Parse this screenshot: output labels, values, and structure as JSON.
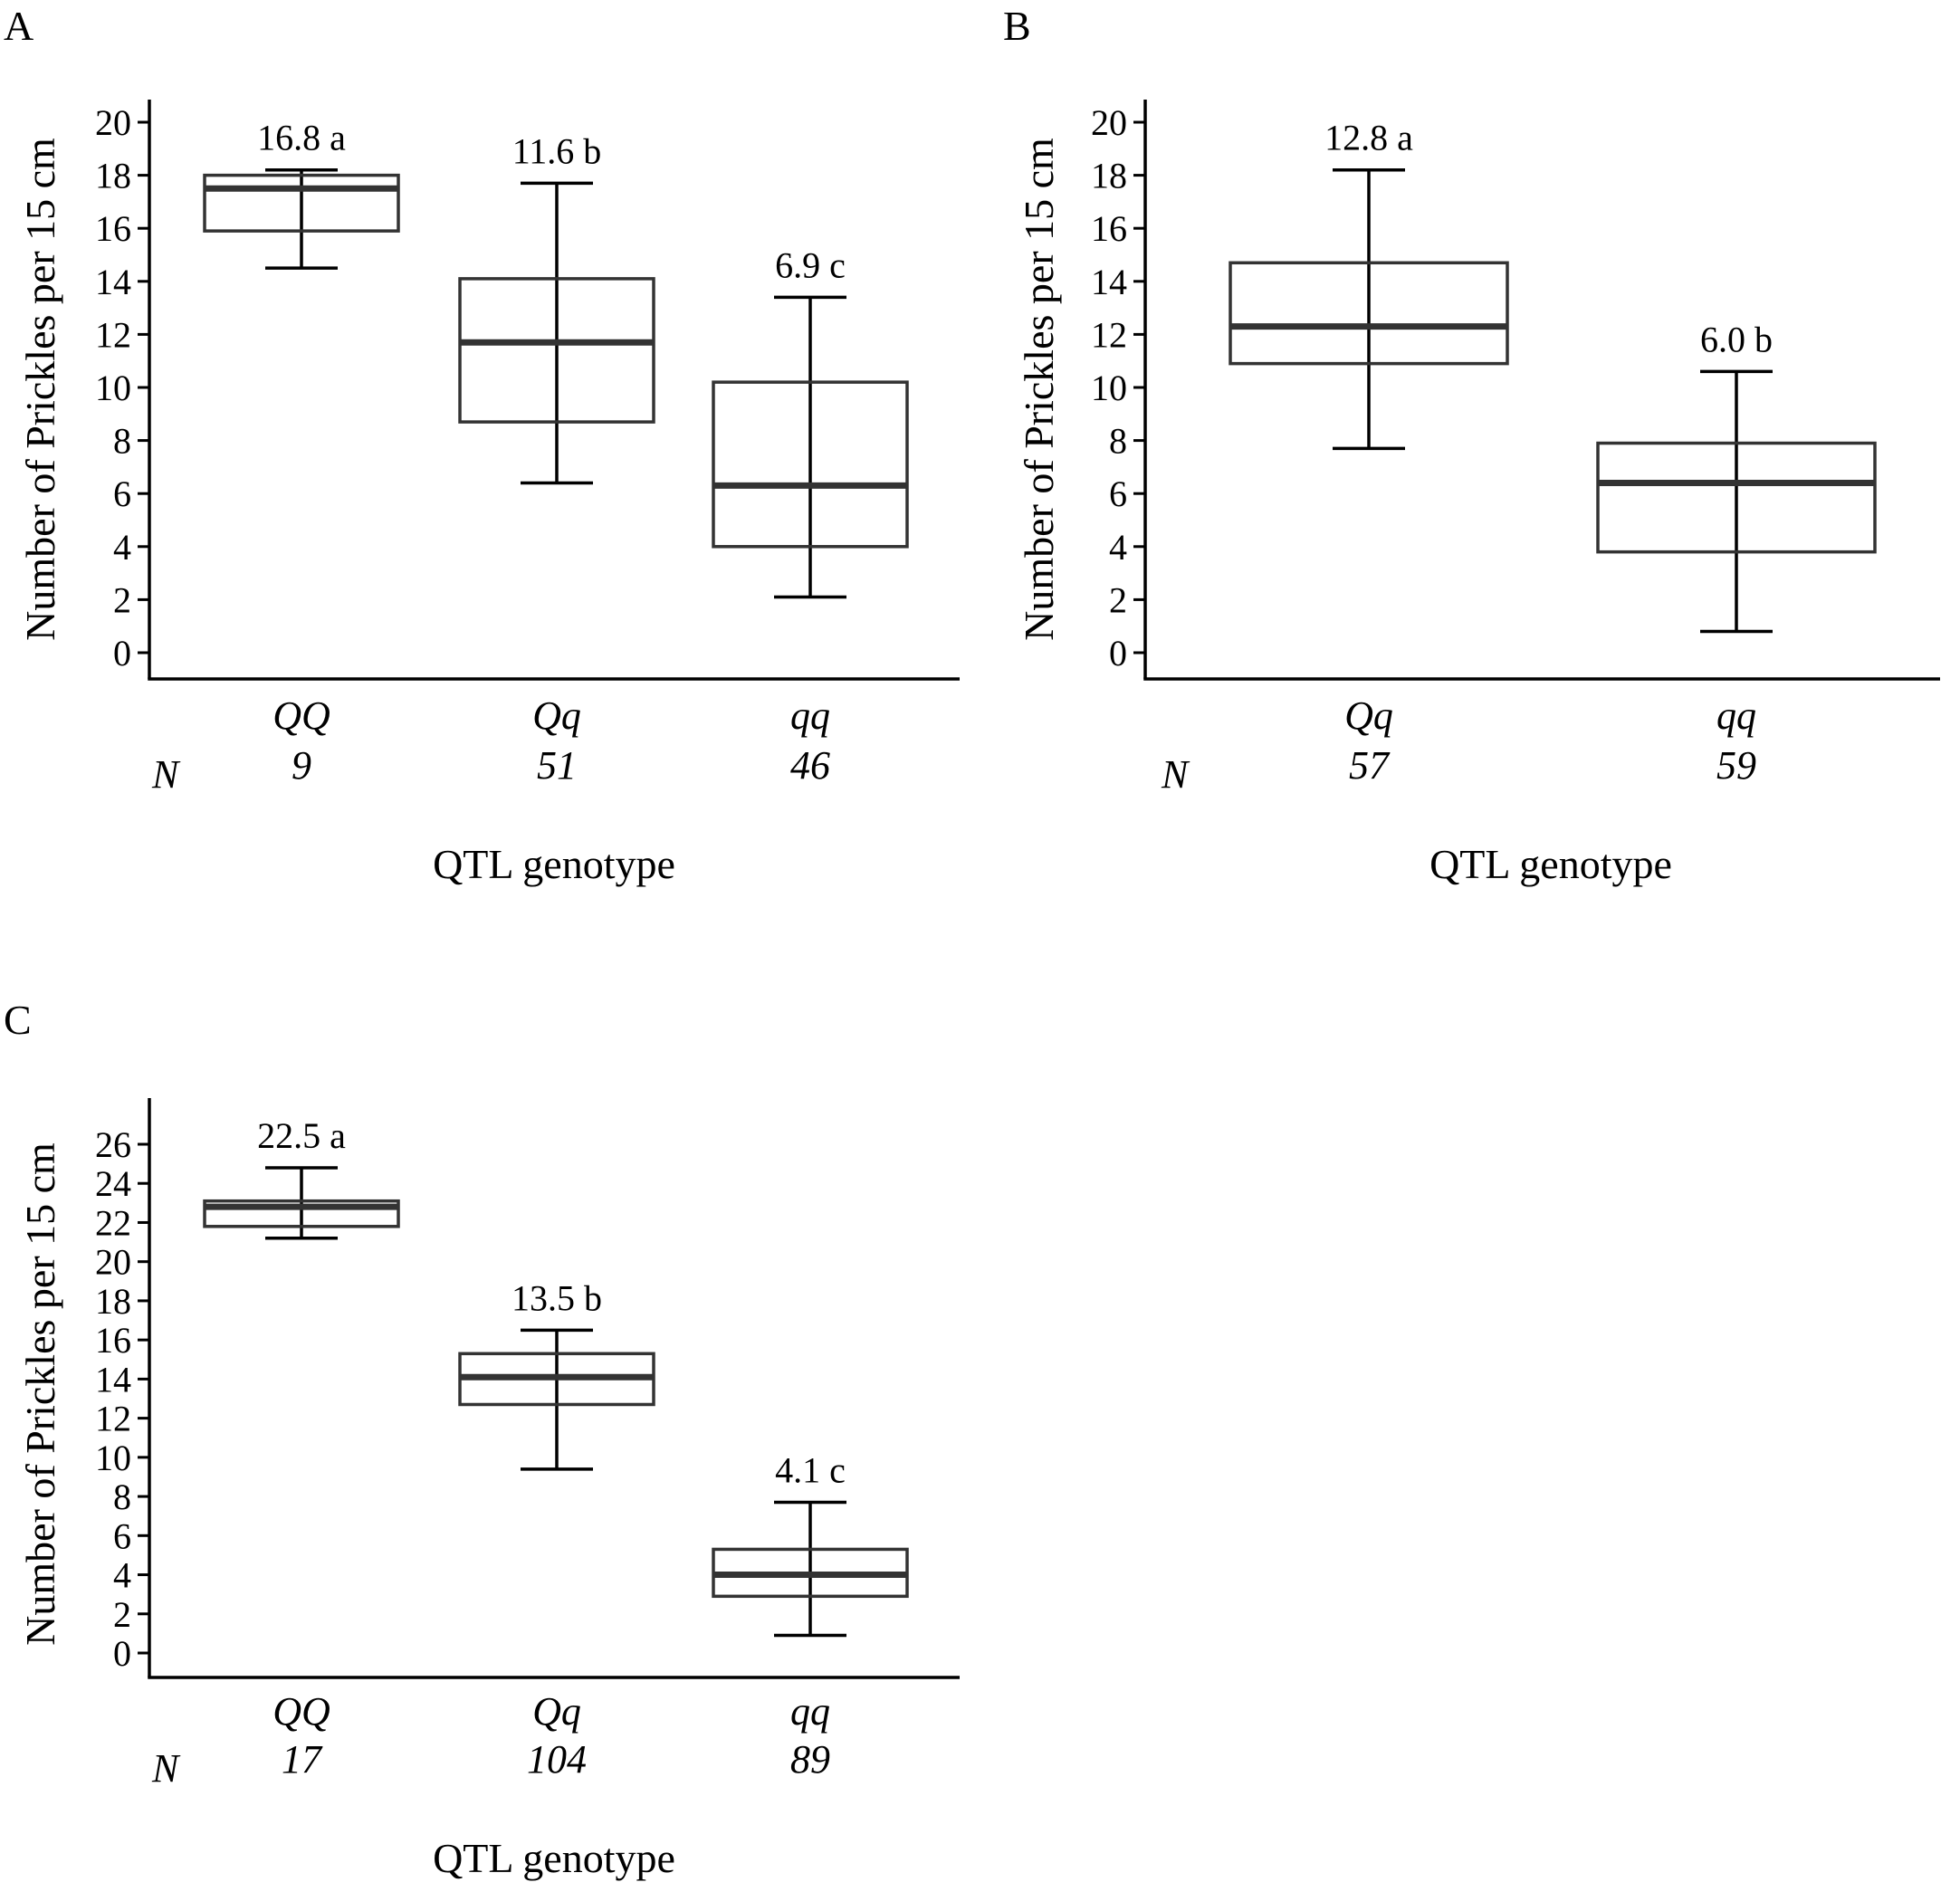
{
  "chart_data": [
    {
      "panel": "A",
      "type": "boxplot",
      "ylabel": "Number of Prickles per 15 cm",
      "xlabel": "QTL genotype",
      "n_label": "N",
      "ylim": [
        -1,
        21
      ],
      "yticks": [
        0,
        2,
        4,
        6,
        8,
        10,
        12,
        14,
        16,
        18,
        20
      ],
      "categories": [
        "QQ",
        "Qq",
        "qq"
      ],
      "n": [
        "9",
        "51",
        "46"
      ],
      "labels": [
        "16.8 a",
        "11.6 b",
        "6.9 c"
      ],
      "boxes": [
        {
          "min": 14.5,
          "q1": 15.9,
          "median": 17.5,
          "q3": 18.0,
          "max": 18.2
        },
        {
          "min": 6.4,
          "q1": 8.7,
          "median": 11.7,
          "q3": 14.1,
          "max": 17.7
        },
        {
          "min": 2.1,
          "q1": 4.0,
          "median": 6.3,
          "q3": 10.2,
          "max": 13.4
        }
      ]
    },
    {
      "panel": "B",
      "type": "boxplot",
      "ylabel": "Number of Prickles per 15 cm",
      "xlabel": "QTL genotype",
      "n_label": "N",
      "ylim": [
        -1,
        21
      ],
      "yticks": [
        0,
        2,
        4,
        6,
        8,
        10,
        12,
        14,
        16,
        18,
        20
      ],
      "categories": [
        "Qq",
        "qq"
      ],
      "n": [
        "57",
        "59"
      ],
      "labels": [
        "12.8 a",
        "6.0 b"
      ],
      "boxes": [
        {
          "min": 7.7,
          "q1": 10.9,
          "median": 12.3,
          "q3": 14.7,
          "max": 18.2
        },
        {
          "min": 0.8,
          "q1": 3.8,
          "median": 6.4,
          "q3": 7.9,
          "max": 10.6
        }
      ]
    },
    {
      "panel": "C",
      "type": "boxplot",
      "ylabel": "Number of Prickles per 15 cm",
      "xlabel": "QTL genotype",
      "n_label": "N",
      "ylim": [
        -1.4,
        28.2
      ],
      "yticks": [
        0,
        2,
        4,
        6,
        8,
        10,
        12,
        14,
        16,
        18,
        20,
        22,
        24,
        26
      ],
      "categories": [
        "QQ",
        "Qq",
        "qq"
      ],
      "n": [
        "17",
        "104",
        "89"
      ],
      "labels": [
        "22.5 a",
        "13.5 b",
        "4.1 c"
      ],
      "boxes": [
        {
          "min": 21.2,
          "q1": 21.8,
          "median": 22.8,
          "q3": 23.1,
          "max": 24.8
        },
        {
          "min": 9.4,
          "q1": 12.7,
          "median": 14.1,
          "q3": 15.3,
          "max": 16.5
        },
        {
          "min": 0.9,
          "q1": 2.9,
          "median": 4.0,
          "q3": 5.3,
          "max": 7.7
        }
      ]
    }
  ]
}
